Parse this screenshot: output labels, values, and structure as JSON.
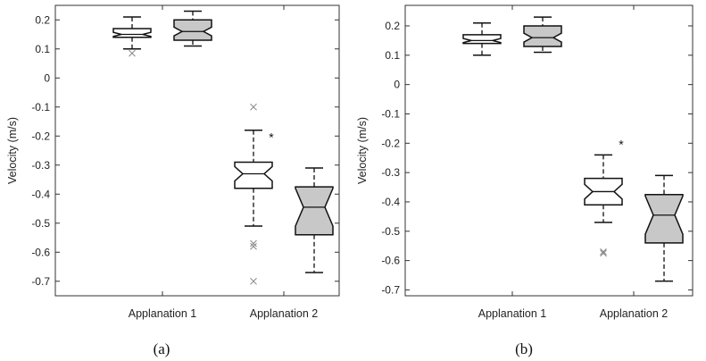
{
  "chart_data": [
    {
      "type": "box",
      "panel_label": "(a)",
      "ylabel": "Velocity (m/s)",
      "ylim": [
        -0.75,
        0.25
      ],
      "yticks": [
        0.2,
        0.1,
        0,
        -0.1,
        -0.2,
        -0.3,
        -0.4,
        -0.5,
        -0.6,
        -0.7
      ],
      "ytick_labels": [
        "0.2",
        "0.1",
        "0",
        "-0.1",
        "-0.2",
        "-0.3",
        "-0.4",
        "-0.5",
        "-0.6",
        "-0.7"
      ],
      "categories": [
        "Applanation 1",
        "Applanation 2"
      ],
      "significance": {
        "category": "Applanation 2",
        "label": "*",
        "y": -0.2
      },
      "boxes": [
        {
          "category": "Applanation 1",
          "fill": "#ffffff",
          "whisker_low": 0.1,
          "q1": 0.14,
          "median": 0.15,
          "q3": 0.17,
          "whisker_high": 0.21,
          "notch_low": 0.143,
          "notch_high": 0.157,
          "outliers": [
            0.085
          ]
        },
        {
          "category": "Applanation 1",
          "fill": "#c8c8c8",
          "whisker_low": 0.11,
          "q1": 0.13,
          "median": 0.16,
          "q3": 0.2,
          "whisker_high": 0.23,
          "notch_low": 0.145,
          "notch_high": 0.175,
          "outliers": []
        },
        {
          "category": "Applanation 2",
          "fill": "#ffffff",
          "whisker_low": -0.51,
          "q1": -0.38,
          "median": -0.33,
          "q3": -0.29,
          "whisker_high": -0.18,
          "notch_low": -0.355,
          "notch_high": -0.305,
          "outliers": [
            -0.1,
            -0.57,
            -0.58,
            -0.7
          ]
        },
        {
          "category": "Applanation 2",
          "fill": "#c8c8c8",
          "whisker_low": -0.67,
          "q1": -0.54,
          "median": -0.445,
          "q3": -0.375,
          "whisker_high": -0.31,
          "notch_low": -0.51,
          "notch_high": -0.38,
          "outliers": []
        }
      ]
    },
    {
      "type": "box",
      "panel_label": "(b)",
      "ylabel": "Velocity (m/s)",
      "ylim": [
        -0.72,
        0.27
      ],
      "yticks": [
        0.2,
        0.1,
        0,
        -0.1,
        -0.2,
        -0.3,
        -0.4,
        -0.5,
        -0.6,
        -0.7
      ],
      "ytick_labels": [
        "0.2",
        "0.1",
        "0",
        "-0.1",
        "-0.2",
        "-0.3",
        "-0.4",
        "-0.5",
        "-0.6",
        "-0.7"
      ],
      "categories": [
        "Applanation 1",
        "Applanation 2"
      ],
      "significance": {
        "category": "Applanation 2",
        "label": "*",
        "y": -0.2
      },
      "boxes": [
        {
          "category": "Applanation 1",
          "fill": "#ffffff",
          "whisker_low": 0.1,
          "q1": 0.14,
          "median": 0.15,
          "q3": 0.17,
          "whisker_high": 0.21,
          "notch_low": 0.143,
          "notch_high": 0.157,
          "outliers": []
        },
        {
          "category": "Applanation 1",
          "fill": "#c8c8c8",
          "whisker_low": 0.11,
          "q1": 0.13,
          "median": 0.16,
          "q3": 0.2,
          "whisker_high": 0.23,
          "notch_low": 0.145,
          "notch_high": 0.175,
          "outliers": []
        },
        {
          "category": "Applanation 2",
          "fill": "#ffffff",
          "whisker_low": -0.47,
          "q1": -0.41,
          "median": -0.365,
          "q3": -0.32,
          "whisker_high": -0.24,
          "notch_low": -0.39,
          "notch_high": -0.34,
          "outliers": [
            -0.57,
            -0.575
          ]
        },
        {
          "category": "Applanation 2",
          "fill": "#c8c8c8",
          "whisker_low": -0.67,
          "q1": -0.54,
          "median": -0.445,
          "q3": -0.375,
          "whisker_high": -0.31,
          "notch_low": -0.51,
          "notch_high": -0.38,
          "outliers": []
        }
      ]
    }
  ]
}
